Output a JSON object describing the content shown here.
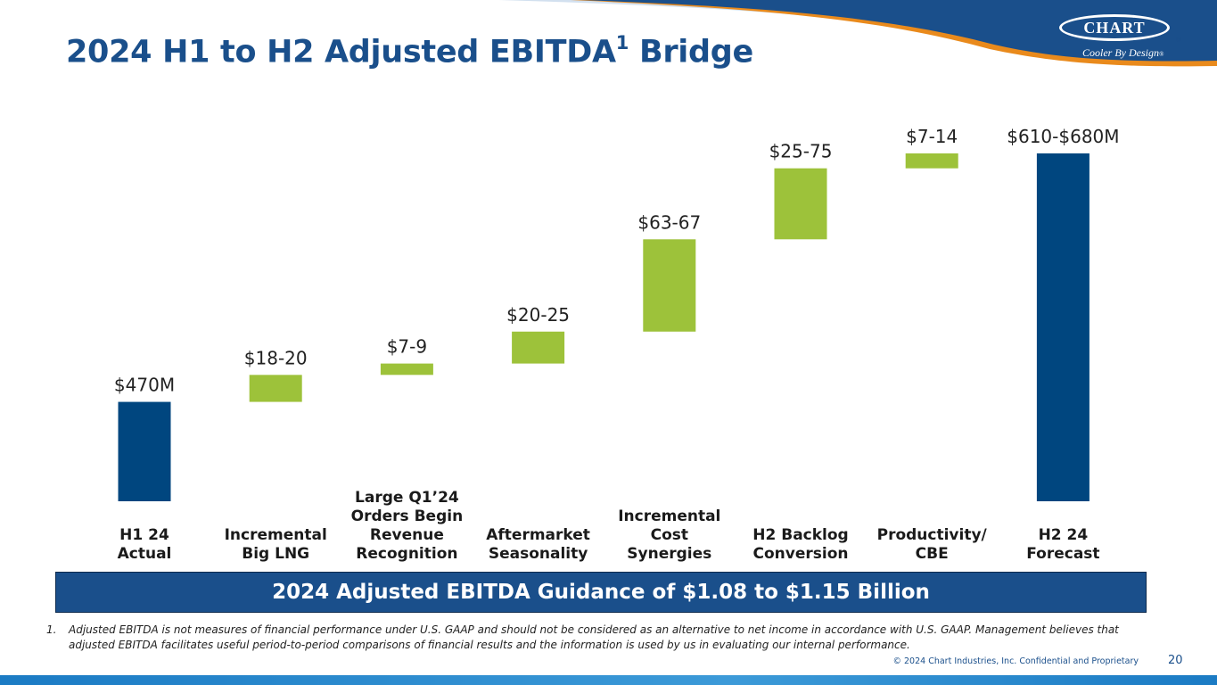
{
  "slide": {
    "title_main": "2024 H1 to H2 Adjusted EBITDA",
    "title_sup": "1",
    "title_end": " Bridge",
    "logo_text": "CHART",
    "logo_reg": "®",
    "logo_tagline": "Cooler By Design",
    "logo_tagline_reg": "®",
    "guidance": "2024 Adjusted EBITDA Guidance of $1.08 to $1.15 Billion",
    "footnote_number": "1.",
    "footnote_text": "Adjusted EBITDA is not measures of financial performance under U.S. GAAP and should not be considered as an alternative to net income in accordance with U.S. GAAP. Management believes that adjusted EBITDA facilitates useful period-to-period comparisons of financial results and the information is used by us in evaluating our internal performance.",
    "copyright": "© 2024 Chart Industries, Inc. Confidential and Proprietary",
    "page_number": "20"
  },
  "colors": {
    "navy": "#1a4f8b",
    "bar_total": "#00467f",
    "bar_increment": "#9dc23a",
    "orange_swoosh": "#e98a1c",
    "light_swoosh": "#7fa7d2"
  },
  "chart_data": {
    "type": "waterfall",
    "units": "$M",
    "title": "2024 H1 to H2 Adjusted EBITDA Bridge",
    "categories": [
      [
        "H1 24",
        "Actual"
      ],
      [
        "Incremental",
        "Big LNG"
      ],
      [
        "Large Q1’24",
        "Orders Begin",
        "Revenue",
        "Recognition"
      ],
      [
        "Aftermarket",
        "Seasonality"
      ],
      [
        "Incremental",
        "Cost",
        "Synergies"
      ],
      [
        "H2 Backlog",
        "Conversion"
      ],
      [
        "Productivity/",
        "CBE"
      ],
      [
        "H2 24",
        "Forecast"
      ]
    ],
    "bars": [
      {
        "kind": "total",
        "label": "$470M",
        "start": 0,
        "end": 470
      },
      {
        "kind": "increment",
        "label": "$18-20",
        "start": 470,
        "end": 489
      },
      {
        "kind": "increment",
        "label": "$7-9",
        "start": 489,
        "end": 497
      },
      {
        "kind": "increment",
        "label": "$20-25",
        "start": 497,
        "end": 519.5
      },
      {
        "kind": "increment",
        "label": "$63-67",
        "start": 519.5,
        "end": 584.5
      },
      {
        "kind": "increment",
        "label": "$25-75",
        "start": 584.5,
        "end": 634.5
      },
      {
        "kind": "increment",
        "label": "$7-14",
        "start": 634.5,
        "end": 645
      },
      {
        "kind": "total",
        "label": "$610-$680M",
        "start": 0,
        "end": 645
      }
    ],
    "y_axis_shown": false,
    "y_axis_broken": true,
    "visible_range": [
      400,
      660
    ],
    "grid": false,
    "legend": "none"
  }
}
